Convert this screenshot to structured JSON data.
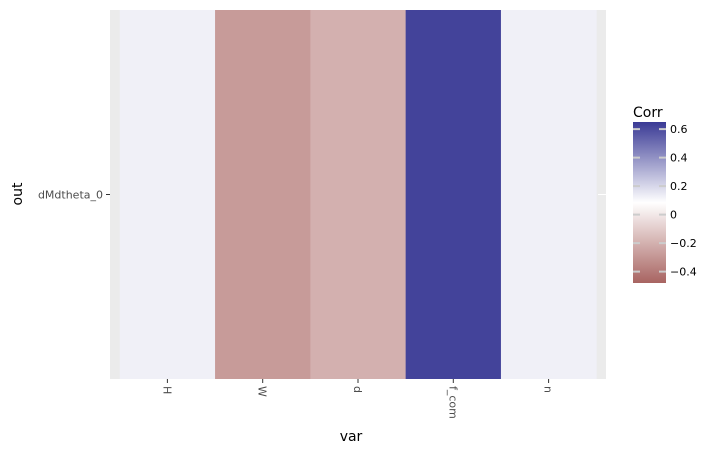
{
  "chart_data": {
    "type": "heatmap",
    "x": [
      "H",
      "W",
      "d",
      "f_com",
      "n"
    ],
    "y": [
      "dMdtheta_0"
    ],
    "values": [
      [
        0.05,
        -0.42,
        -0.33,
        0.62,
        0.05
      ]
    ],
    "xlabel": "var",
    "ylabel": "out",
    "legend": {
      "title": "Corr",
      "placement": "right",
      "ticks": [
        0.6,
        0.4,
        0.2,
        0,
        -0.2,
        -0.4
      ],
      "tick_labels": [
        "0.6",
        "0.4",
        "0.2",
        "0",
        "−0.2",
        "−0.4"
      ],
      "range": [
        -0.48,
        0.65
      ]
    },
    "colors": {
      "low": "#a86461",
      "mid": "#ffffff",
      "high": "#3a3a95",
      "panel_background": "#ebebeb"
    }
  }
}
